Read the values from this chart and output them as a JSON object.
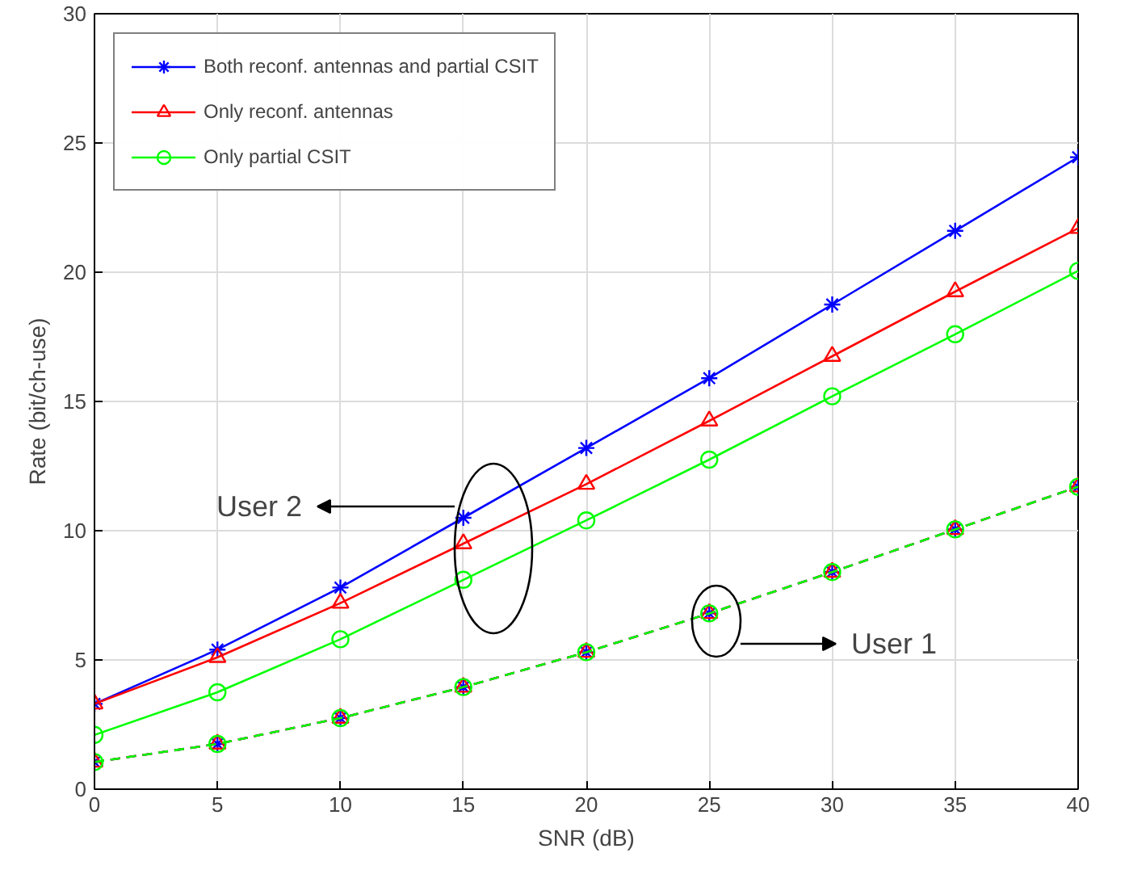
{
  "chart_data": {
    "type": "line",
    "xlabel": "SNR (dB)",
    "ylabel": "Rate (bit/ch-use)",
    "x": [
      0,
      5,
      10,
      15,
      20,
      25,
      30,
      35,
      40
    ],
    "series": [
      {
        "name": "Both reconf. antennas and partial CSIT",
        "color": "#0000ff",
        "marker": "cross",
        "line_style": "solid",
        "values": [
          3.3,
          5.4,
          7.8,
          10.5,
          13.2,
          15.9,
          18.75,
          21.6,
          24.45
        ]
      },
      {
        "name": "Only reconf. antennas",
        "color": "#ff0000",
        "marker": "triangle",
        "line_style": "solid",
        "values": [
          3.3,
          5.1,
          7.2,
          9.5,
          11.8,
          14.25,
          16.75,
          19.25,
          21.7
        ]
      },
      {
        "name": "Only partial CSIT",
        "color": "#00ff00",
        "marker": "circle",
        "line_style": "solid",
        "values": [
          2.1,
          3.75,
          5.8,
          8.1,
          10.4,
          12.75,
          15.2,
          17.6,
          20.05
        ]
      },
      {
        "color": "#0000ff",
        "marker": "cross",
        "line_style": "dashed",
        "values": [
          1.05,
          1.75,
          2.75,
          3.95,
          5.3,
          6.8,
          8.4,
          10.05,
          11.7
        ]
      },
      {
        "color": "#ff0000",
        "marker": "triangle",
        "line_style": "dashed",
        "values": [
          1.05,
          1.75,
          2.75,
          3.95,
          5.3,
          6.8,
          8.4,
          10.05,
          11.7
        ]
      },
      {
        "color": "#00ff00",
        "marker": "circle",
        "line_style": "dashed",
        "values": [
          1.05,
          1.75,
          2.75,
          3.95,
          5.3,
          6.8,
          8.4,
          10.05,
          11.7
        ]
      }
    ],
    "annotations": [
      "User 2",
      "User 1"
    ],
    "xlim": [
      0,
      40
    ],
    "ylim": [
      0,
      30
    ],
    "xticks": [
      0,
      5,
      10,
      15,
      20,
      25,
      30,
      35,
      40
    ],
    "yticks": [
      0,
      5,
      10,
      15,
      20,
      25,
      30
    ],
    "grid": true,
    "legend": "top left"
  }
}
